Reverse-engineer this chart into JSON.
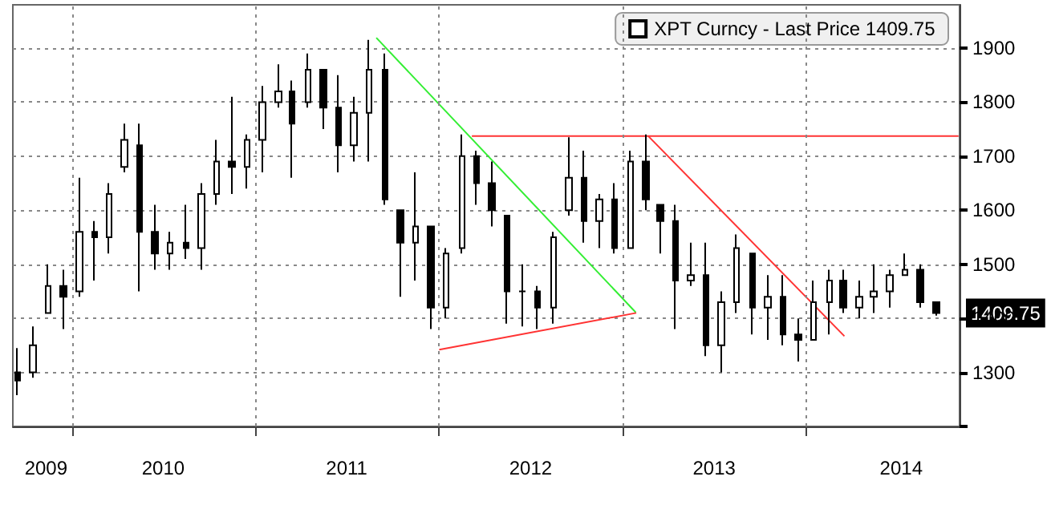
{
  "chart_data": {
    "type": "candlestick",
    "x": [
      "2009-09-15",
      "2009-10-15",
      "2009-11-15",
      "2009-12-15",
      "2010-01-15",
      "2010-02-15",
      "2010-03-15",
      "2010-04-15",
      "2010-05-15",
      "2010-06-15",
      "2010-07-15",
      "2010-08-15",
      "2010-09-15",
      "2010-10-15",
      "2010-11-15",
      "2010-12-15",
      "2011-01-15",
      "2011-02-15",
      "2011-03-15",
      "2011-04-15",
      "2011-05-15",
      "2011-06-15",
      "2011-07-15",
      "2011-08-15",
      "2011-09-15",
      "2011-10-15",
      "2011-11-15",
      "2011-12-15",
      "2012-01-15",
      "2012-02-15",
      "2012-03-15",
      "2012-04-15",
      "2012-05-15",
      "2012-06-15",
      "2012-07-15",
      "2012-08-15",
      "2012-09-15",
      "2012-10-15",
      "2012-11-15",
      "2012-12-15",
      "2013-01-15",
      "2013-02-15",
      "2013-03-15",
      "2013-04-15",
      "2013-05-15",
      "2013-06-15",
      "2013-07-15",
      "2013-08-15",
      "2013-09-15",
      "2013-10-15",
      "2013-11-15",
      "2013-12-15",
      "2014-01-15",
      "2014-02-15",
      "2014-03-15",
      "2014-04-15",
      "2014-05-15",
      "2014-06-15",
      "2014-07-15",
      "2014-08-15",
      "2014-09-15"
    ],
    "series": [
      {
        "name": "XPT Curncy - Last Price 1409.75",
        "color": "#000000",
        "ohlc": [
          [
            1300,
            1345,
            1258,
            1285
          ],
          [
            1300,
            1385,
            1290,
            1350
          ],
          [
            1410,
            1500,
            1410,
            1460
          ],
          [
            1460,
            1490,
            1380,
            1440
          ],
          [
            1450,
            1660,
            1440,
            1560
          ],
          [
            1560,
            1580,
            1470,
            1550
          ],
          [
            1550,
            1650,
            1520,
            1630
          ],
          [
            1680,
            1760,
            1670,
            1730
          ],
          [
            1720,
            1760,
            1450,
            1560
          ],
          [
            1560,
            1610,
            1490,
            1520
          ],
          [
            1520,
            1560,
            1490,
            1540
          ],
          [
            1540,
            1610,
            1510,
            1530
          ],
          [
            1530,
            1650,
            1490,
            1630
          ],
          [
            1630,
            1730,
            1610,
            1690
          ],
          [
            1690,
            1810,
            1630,
            1680
          ],
          [
            1680,
            1740,
            1640,
            1730
          ],
          [
            1730,
            1830,
            1670,
            1800
          ],
          [
            1800,
            1870,
            1790,
            1820
          ],
          [
            1820,
            1840,
            1660,
            1760
          ],
          [
            1800,
            1890,
            1790,
            1860
          ],
          [
            1860,
            1860,
            1750,
            1790
          ],
          [
            1790,
            1850,
            1670,
            1720
          ],
          [
            1720,
            1810,
            1690,
            1780
          ],
          [
            1780,
            1915,
            1690,
            1860
          ],
          [
            1860,
            1890,
            1610,
            1620
          ],
          [
            1600,
            1600,
            1440,
            1540
          ],
          [
            1540,
            1670,
            1470,
            1570
          ],
          [
            1570,
            1570,
            1380,
            1420
          ],
          [
            1420,
            1530,
            1400,
            1520
          ],
          [
            1530,
            1740,
            1520,
            1700
          ],
          [
            1700,
            1710,
            1610,
            1650
          ],
          [
            1650,
            1690,
            1570,
            1600
          ],
          [
            1590,
            1590,
            1390,
            1450
          ],
          [
            1450,
            1500,
            1385,
            1450
          ],
          [
            1450,
            1460,
            1380,
            1420
          ],
          [
            1420,
            1560,
            1390,
            1550
          ],
          [
            1600,
            1735,
            1590,
            1660
          ],
          [
            1660,
            1710,
            1540,
            1580
          ],
          [
            1580,
            1630,
            1530,
            1620
          ],
          [
            1620,
            1650,
            1520,
            1530
          ],
          [
            1530,
            1710,
            1530,
            1690
          ],
          [
            1690,
            1740,
            1600,
            1620
          ],
          [
            1610,
            1610,
            1520,
            1580
          ],
          [
            1580,
            1610,
            1380,
            1470
          ],
          [
            1470,
            1540,
            1460,
            1480
          ],
          [
            1480,
            1540,
            1330,
            1350
          ],
          [
            1350,
            1450,
            1300,
            1430
          ],
          [
            1430,
            1555,
            1410,
            1530
          ],
          [
            1520,
            1520,
            1370,
            1420
          ],
          [
            1420,
            1480,
            1360,
            1440
          ],
          [
            1440,
            1480,
            1350,
            1370
          ],
          [
            1370,
            1400,
            1320,
            1360
          ],
          [
            1360,
            1470,
            1360,
            1430
          ],
          [
            1430,
            1490,
            1370,
            1470
          ],
          [
            1470,
            1490,
            1410,
            1420
          ],
          [
            1420,
            1470,
            1400,
            1440
          ],
          [
            1440,
            1500,
            1410,
            1450
          ],
          [
            1450,
            1490,
            1420,
            1480
          ],
          [
            1480,
            1520,
            1480,
            1490
          ],
          [
            1490,
            1500,
            1420,
            1430
          ],
          [
            1430,
            1430,
            1405,
            1409.75
          ]
        ]
      },
      {
        "type": "line",
        "color": "#33ee33",
        "marker": "none",
        "x": [
          "2011-08-29",
          "2013-01-26"
        ],
        "values": [
          1919,
          1411
        ]
      },
      {
        "type": "line",
        "color": "#ff3333",
        "marker": "none",
        "x": [
          "2012-01-01",
          "2013-01-27"
        ],
        "values": [
          1342,
          1410
        ]
      },
      {
        "type": "line",
        "color": "#ff3333",
        "marker": "none",
        "x": [
          "2012-03-06",
          "2014-10-30"
        ],
        "values": [
          1737,
          1737
        ]
      },
      {
        "type": "line",
        "color": "#ff3333",
        "marker": "none",
        "x": [
          "2013-02-20",
          "2014-03-17"
        ],
        "values": [
          1737,
          1367
        ]
      }
    ],
    "xlim": [
      "2009-09-05",
      "2014-11-01"
    ],
    "xticks": [
      {
        "value": "2010-01-01",
        "label": null
      },
      {
        "value": "2011-01-01",
        "label": null
      },
      {
        "value": "2012-01-01",
        "label": null
      },
      {
        "value": "2013-01-01",
        "label": null
      },
      {
        "value": "2014-01-01",
        "label": null
      },
      {
        "value": "2009-11-10",
        "label": "2009"
      },
      {
        "value": "2010-07-01",
        "label": "2010"
      },
      {
        "value": "2011-07-01",
        "label": "2011"
      },
      {
        "value": "2012-07-01",
        "label": "2012"
      },
      {
        "value": "2013-07-01",
        "label": "2013"
      },
      {
        "value": "2014-07-08",
        "label": "2014"
      }
    ],
    "ylim": [
      1200,
      1980
    ],
    "yticks": [
      {
        "value": 1200,
        "label": null
      },
      1300,
      1400,
      1500,
      1600,
      1700,
      1800,
      1900
    ],
    "annotations": [
      "1409.75"
    ],
    "grid": true,
    "legend": "top right"
  }
}
